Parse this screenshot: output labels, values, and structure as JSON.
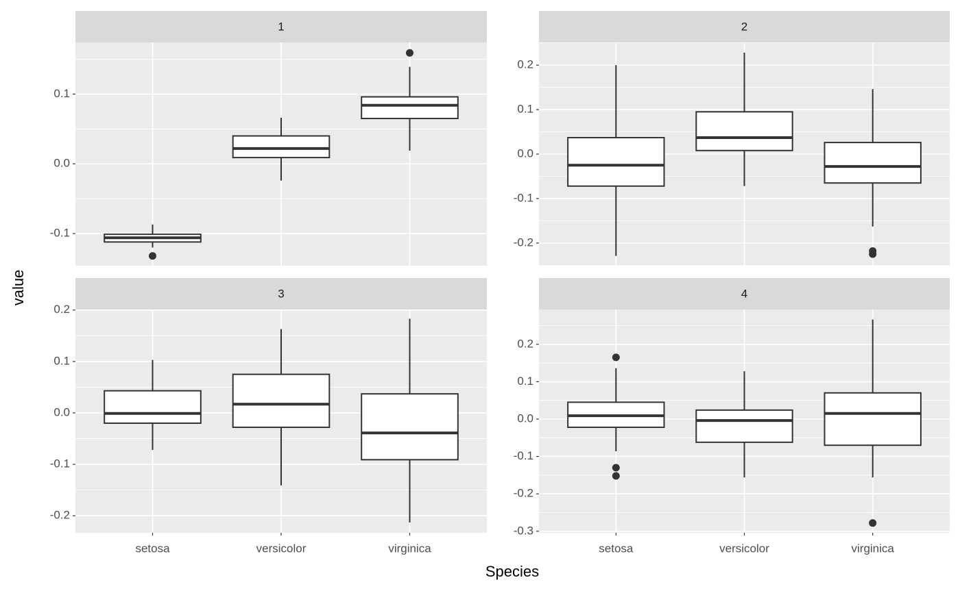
{
  "xlabel": "Species",
  "ylabel": "value",
  "categories": [
    "setosa",
    "versicolor",
    "virginica"
  ],
  "chart_data": [
    {
      "type": "box",
      "title": "1",
      "box_fill": "#ffffff",
      "line_color": "#333333",
      "grid": true,
      "ylim": [
        -0.146,
        0.174
      ],
      "yticks": [
        -0.1,
        {
          "value": 0,
          "label": "0.0"
        },
        0.1
      ],
      "boxes": [
        {
          "min": -0.12,
          "q1": -0.112,
          "median": -0.106,
          "q3": -0.101,
          "max": -0.087,
          "outliers": [
            -0.132
          ]
        },
        {
          "min": -0.024,
          "q1": 0.009,
          "median": 0.022,
          "q3": 0.04,
          "max": 0.066,
          "outliers": []
        },
        {
          "min": 0.019,
          "q1": 0.065,
          "median": 0.084,
          "q3": 0.096,
          "max": 0.139,
          "outliers": [
            0.159
          ]
        }
      ]
    },
    {
      "type": "box",
      "title": "2",
      "box_fill": "#ffffff",
      "line_color": "#333333",
      "grid": true,
      "ylim": [
        -0.251,
        0.251
      ],
      "yticks": [
        -0.2,
        -0.1,
        {
          "value": 0,
          "label": "0.0"
        },
        0.1,
        0.2
      ],
      "boxes": [
        {
          "min": -0.229,
          "q1": -0.072,
          "median": -0.025,
          "q3": 0.037,
          "max": 0.2,
          "outliers": []
        },
        {
          "min": -0.072,
          "q1": 0.008,
          "median": 0.037,
          "q3": 0.095,
          "max": 0.228,
          "outliers": []
        },
        {
          "min": -0.163,
          "q1": -0.065,
          "median": -0.028,
          "q3": 0.026,
          "max": 0.146,
          "outliers": [
            -0.218,
            -0.225
          ]
        }
      ]
    },
    {
      "type": "box",
      "title": "3",
      "box_fill": "#ffffff",
      "line_color": "#333333",
      "grid": true,
      "ylim": [
        -0.233,
        0.201
      ],
      "yticks": [
        -0.2,
        -0.1,
        {
          "value": 0,
          "label": "0.0"
        },
        0.1,
        0.2
      ],
      "boxes": [
        {
          "min": -0.072,
          "q1": -0.02,
          "median": -0.001,
          "q3": 0.043,
          "max": 0.103,
          "outliers": []
        },
        {
          "min": -0.141,
          "q1": -0.028,
          "median": 0.017,
          "q3": 0.075,
          "max": 0.163,
          "outliers": []
        },
        {
          "min": -0.213,
          "q1": -0.091,
          "median": -0.039,
          "q3": 0.037,
          "max": 0.183,
          "outliers": []
        }
      ]
    },
    {
      "type": "box",
      "title": "4",
      "box_fill": "#ffffff",
      "line_color": "#333333",
      "grid": true,
      "ylim": [
        -0.304,
        0.293
      ],
      "yticks": [
        -0.3,
        -0.2,
        -0.1,
        {
          "value": 0,
          "label": "0.0"
        },
        0.1,
        0.2
      ],
      "boxes": [
        {
          "min": -0.086,
          "q1": -0.022,
          "median": 0.009,
          "q3": 0.045,
          "max": 0.136,
          "outliers": [
            0.165,
            -0.13,
            -0.152
          ]
        },
        {
          "min": -0.156,
          "q1": -0.062,
          "median": -0.004,
          "q3": 0.024,
          "max": 0.128,
          "outliers": []
        },
        {
          "min": -0.156,
          "q1": -0.07,
          "median": 0.015,
          "q3": 0.07,
          "max": 0.266,
          "outliers": [
            -0.278
          ]
        }
      ]
    }
  ]
}
